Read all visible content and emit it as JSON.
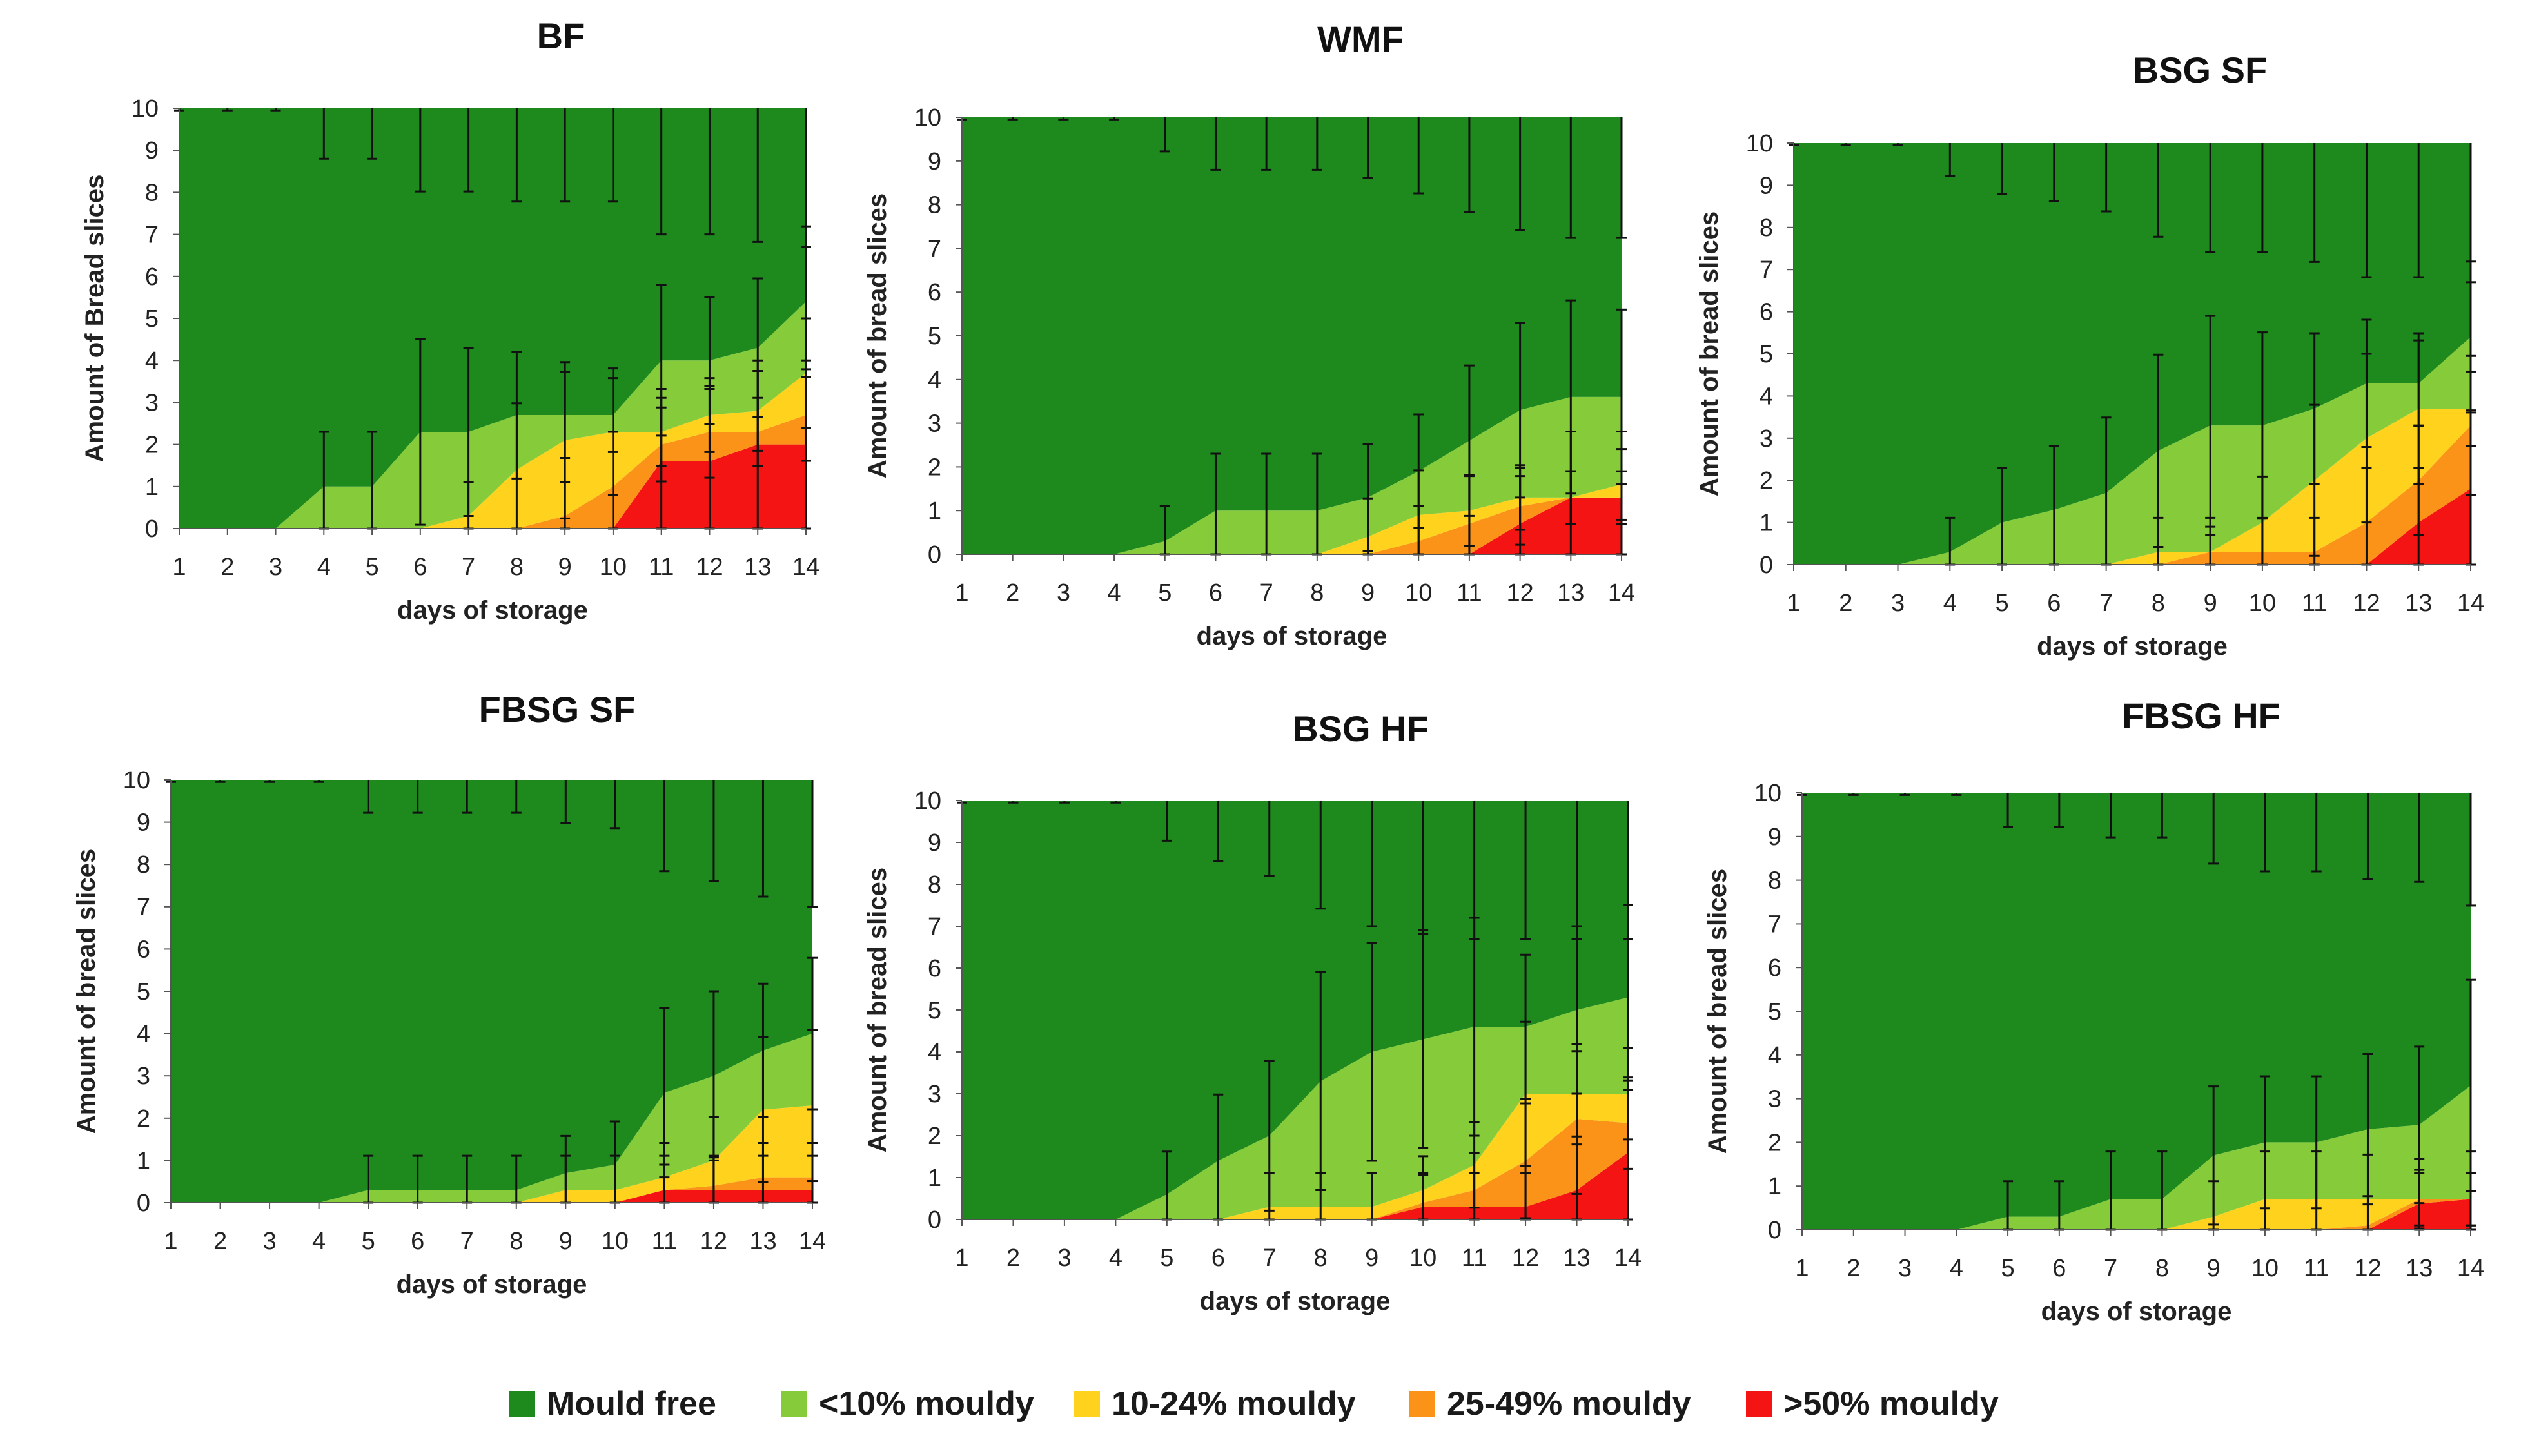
{
  "figure": {
    "legend": [
      {
        "label": "Mould free",
        "color": "#1e8a1e"
      },
      {
        "label": "<10% mouldy",
        "color": "#86cc3a"
      },
      {
        "label": "10-24% mouldy",
        "color": "#ffd21e"
      },
      {
        "label": "25-49% mouldy",
        "color": "#fb9319"
      },
      {
        "label": ">50% mouldy",
        "color": "#f41414"
      }
    ]
  },
  "chart_data": [
    {
      "type": "area",
      "stacked": true,
      "title": "BF",
      "xlabel": "days of storage",
      "ylabel": "Amount of Bread slices",
      "categories": [
        1,
        2,
        3,
        4,
        5,
        6,
        7,
        8,
        9,
        10,
        11,
        12,
        13,
        14
      ],
      "ylim": [
        0,
        10
      ],
      "yticks": [
        0,
        1,
        2,
        3,
        4,
        5,
        6,
        7,
        8,
        9,
        10
      ],
      "series": [
        {
          "name": ">50% mouldy",
          "values": [
            0,
            0,
            0,
            0,
            0,
            0,
            0,
            0,
            0,
            0,
            1.6,
            1.6,
            2,
            2
          ]
        },
        {
          "name": "25-49% mouldy",
          "values": [
            0,
            0,
            0,
            0,
            0,
            0,
            0,
            0,
            0.3,
            1,
            0.4,
            0.7,
            0.3,
            0.7
          ]
        },
        {
          "name": "10-24% mouldy",
          "values": [
            0,
            0,
            0,
            0,
            0,
            0,
            0.3,
            1.4,
            1.8,
            1.3,
            0.3,
            0.4,
            0.5,
            1
          ]
        },
        {
          "name": "<10% mouldy",
          "values": [
            0,
            0,
            0,
            1,
            1,
            2.3,
            2,
            1.3,
            0.6,
            0.4,
            1.7,
            1.3,
            1.5,
            1.7
          ]
        },
        {
          "name": "Mould free",
          "values": [
            10,
            10,
            10,
            9,
            9,
            7.7,
            7.7,
            7.3,
            7.3,
            7.3,
            6,
            6,
            5.7,
            4.6
          ]
        }
      ]
    },
    {
      "type": "area",
      "stacked": true,
      "title": "WMF",
      "xlabel": "days of storage",
      "ylabel": "Amount of bread slices",
      "categories": [
        1,
        2,
        3,
        4,
        5,
        6,
        7,
        8,
        9,
        10,
        11,
        12,
        13,
        14
      ],
      "ylim": [
        0,
        10
      ],
      "yticks": [
        0,
        1,
        2,
        3,
        4,
        5,
        6,
        7,
        8,
        9,
        10
      ],
      "series": [
        {
          "name": ">50% mouldy",
          "values": [
            0,
            0,
            0,
            0,
            0,
            0,
            0,
            0,
            0,
            0,
            0,
            0.7,
            1.3,
            1.3
          ]
        },
        {
          "name": "25-49% mouldy",
          "values": [
            0,
            0,
            0,
            0,
            0,
            0,
            0,
            0,
            0,
            0.3,
            0.7,
            0.4,
            0,
            0
          ]
        },
        {
          "name": "10-24% mouldy",
          "values": [
            0,
            0,
            0,
            0,
            0,
            0,
            0,
            0,
            0.4,
            0.6,
            0.3,
            0.2,
            0,
            0.3
          ]
        },
        {
          "name": "<10% mouldy",
          "values": [
            0,
            0,
            0,
            0,
            0.3,
            1,
            1,
            1,
            0.9,
            1,
            1.6,
            2,
            2.3,
            2
          ]
        },
        {
          "name": "Mould free",
          "values": [
            10,
            10,
            10,
            10,
            9.7,
            9,
            9,
            9,
            8.7,
            8.1,
            7.4,
            6.7,
            6.4,
            6.4
          ]
        }
      ]
    },
    {
      "type": "area",
      "stacked": true,
      "title": "BSG SF",
      "xlabel": "days of storage",
      "ylabel": "Amount of bread slices",
      "categories": [
        1,
        2,
        3,
        4,
        5,
        6,
        7,
        8,
        9,
        10,
        11,
        12,
        13,
        14
      ],
      "ylim": [
        0,
        10
      ],
      "yticks": [
        0,
        1,
        2,
        3,
        4,
        5,
        6,
        7,
        8,
        9,
        10
      ],
      "series": [
        {
          "name": ">50% mouldy",
          "values": [
            0,
            0,
            0,
            0,
            0,
            0,
            0,
            0,
            0,
            0,
            0,
            0,
            1,
            1.8
          ]
        },
        {
          "name": "25-49% mouldy",
          "values": [
            0,
            0,
            0,
            0,
            0,
            0,
            0,
            0,
            0.3,
            0.3,
            0.3,
            1,
            1,
            1.5
          ]
        },
        {
          "name": "10-24% mouldy",
          "values": [
            0,
            0,
            0,
            0,
            0,
            0,
            0,
            0.3,
            0,
            0.7,
            1.7,
            2,
            1.7,
            0.4
          ]
        },
        {
          "name": "<10% mouldy",
          "values": [
            0,
            0,
            0,
            0.3,
            1,
            1.3,
            1.7,
            2.4,
            3,
            2.3,
            1.7,
            1.3,
            0.6,
            1.7
          ]
        },
        {
          "name": "Mould free",
          "values": [
            10,
            10,
            10,
            9.7,
            9,
            8.7,
            8.3,
            7.3,
            6.7,
            6.7,
            6.3,
            5.7,
            5.7,
            4.6
          ]
        }
      ]
    },
    {
      "type": "area",
      "stacked": true,
      "title": "FBSG SF",
      "xlabel": "days of storage",
      "ylabel": "Amount of bread slices",
      "categories": [
        1,
        2,
        3,
        4,
        5,
        6,
        7,
        8,
        9,
        10,
        11,
        12,
        13,
        14
      ],
      "ylim": [
        0,
        10
      ],
      "yticks": [
        0,
        1,
        2,
        3,
        4,
        5,
        6,
        7,
        8,
        9,
        10
      ],
      "series": [
        {
          "name": ">50% mouldy",
          "values": [
            0,
            0,
            0,
            0,
            0,
            0,
            0,
            0,
            0,
            0,
            0.3,
            0.3,
            0.3,
            0.3
          ]
        },
        {
          "name": "25-49% mouldy",
          "values": [
            0,
            0,
            0,
            0,
            0,
            0,
            0,
            0,
            0,
            0,
            0,
            0.1,
            0.3,
            0.3
          ]
        },
        {
          "name": "10-24% mouldy",
          "values": [
            0,
            0,
            0,
            0,
            0,
            0,
            0,
            0,
            0.3,
            0.3,
            0.3,
            0.6,
            1.6,
            1.7
          ]
        },
        {
          "name": "<10% mouldy",
          "values": [
            0,
            0,
            0,
            0,
            0.3,
            0.3,
            0.3,
            0.3,
            0.4,
            0.6,
            2,
            2,
            1.4,
            1.7
          ]
        },
        {
          "name": "Mould free",
          "values": [
            10,
            10,
            10,
            10,
            9.7,
            9.7,
            9.7,
            9.7,
            9.3,
            9.1,
            7.4,
            7,
            6.4,
            6
          ]
        }
      ]
    },
    {
      "type": "area",
      "stacked": true,
      "title": "BSG HF",
      "xlabel": "days of storage",
      "ylabel": "Amount of bread slices",
      "categories": [
        1,
        2,
        3,
        4,
        5,
        6,
        7,
        8,
        9,
        10,
        11,
        12,
        13,
        14
      ],
      "ylim": [
        0,
        10
      ],
      "yticks": [
        0,
        1,
        2,
        3,
        4,
        5,
        6,
        7,
        8,
        9,
        10
      ],
      "series": [
        {
          "name": ">50% mouldy",
          "values": [
            0,
            0,
            0,
            0,
            0,
            0,
            0,
            0,
            0,
            0.3,
            0.3,
            0.3,
            0.7,
            1.6
          ]
        },
        {
          "name": "25-49% mouldy",
          "values": [
            0,
            0,
            0,
            0,
            0,
            0,
            0,
            0,
            0,
            0.1,
            0.4,
            1.1,
            1.7,
            0.7
          ]
        },
        {
          "name": "10-24% mouldy",
          "values": [
            0,
            0,
            0,
            0,
            0,
            0,
            0.3,
            0.3,
            0.3,
            0.3,
            0.6,
            1.6,
            0.6,
            0.7
          ]
        },
        {
          "name": "<10% mouldy",
          "values": [
            0,
            0,
            0,
            0,
            0.6,
            1.4,
            1.7,
            3,
            3.7,
            3.6,
            3.3,
            1.6,
            2,
            2.3
          ]
        },
        {
          "name": "Mould free",
          "values": [
            10,
            10,
            10,
            10,
            9.4,
            8.6,
            8,
            6.7,
            6,
            5.7,
            5.4,
            5.4,
            5,
            4.7
          ]
        }
      ]
    },
    {
      "type": "area",
      "stacked": true,
      "title": "FBSG HF",
      "xlabel": "days of storage",
      "ylabel": "Amount of bread slices",
      "categories": [
        1,
        2,
        3,
        4,
        5,
        6,
        7,
        8,
        9,
        10,
        11,
        12,
        13,
        14
      ],
      "ylim": [
        0,
        10
      ],
      "yticks": [
        0,
        1,
        2,
        3,
        4,
        5,
        6,
        7,
        8,
        9,
        10
      ],
      "series": [
        {
          "name": ">50% mouldy",
          "values": [
            0,
            0,
            0,
            0,
            0,
            0,
            0,
            0,
            0,
            0,
            0,
            0,
            0.6,
            0.7
          ]
        },
        {
          "name": "25-49% mouldy",
          "values": [
            0,
            0,
            0,
            0,
            0,
            0,
            0,
            0,
            0,
            0,
            0,
            0.1,
            0.1,
            0
          ]
        },
        {
          "name": "10-24% mouldy",
          "values": [
            0,
            0,
            0,
            0,
            0,
            0,
            0,
            0,
            0.3,
            0.7,
            0.7,
            0.6,
            0,
            0
          ]
        },
        {
          "name": "<10% mouldy",
          "values": [
            0,
            0,
            0,
            0,
            0.3,
            0.3,
            0.7,
            0.7,
            1.4,
            1.3,
            1.3,
            1.6,
            1.7,
            2.6
          ]
        },
        {
          "name": "Mould free",
          "values": [
            10,
            10,
            10,
            10,
            9.7,
            9.7,
            9.3,
            9.3,
            8.3,
            8,
            8,
            7.7,
            7.6,
            6.7
          ]
        }
      ]
    }
  ]
}
